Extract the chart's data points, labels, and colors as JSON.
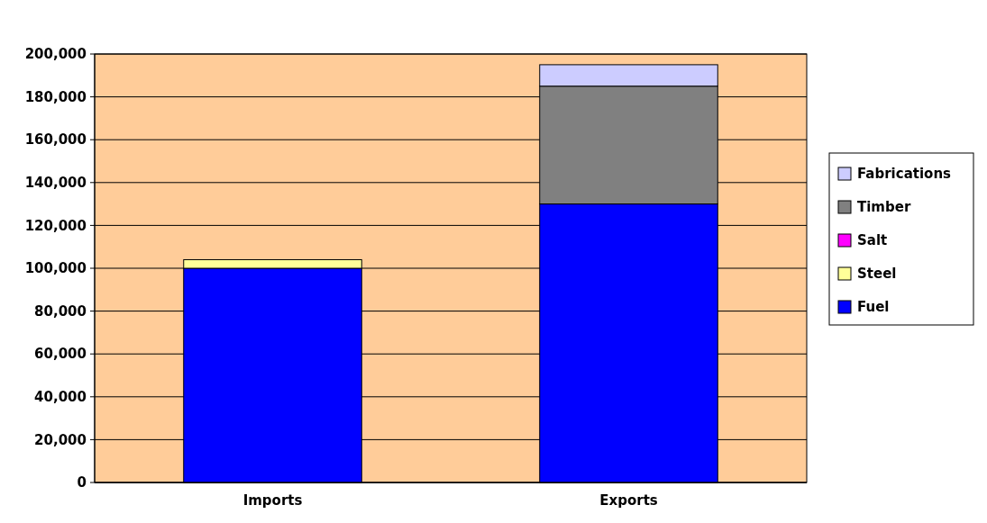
{
  "chart_data": {
    "type": "bar",
    "stacked": true,
    "categories": [
      "Imports",
      "Exports"
    ],
    "series": [
      {
        "name": "Fuel",
        "color": "#0000ff",
        "values": [
          100000,
          130000
        ]
      },
      {
        "name": "Steel",
        "color": "#ffff99",
        "values": [
          4000,
          0
        ]
      },
      {
        "name": "Salt",
        "color": "#ff00ff",
        "values": [
          0,
          0
        ]
      },
      {
        "name": "Timber",
        "color": "#808080",
        "values": [
          0,
          55000
        ]
      },
      {
        "name": "Fabrications",
        "color": "#ccccff",
        "values": [
          0,
          10000
        ]
      }
    ],
    "ylim": [
      0,
      200000
    ],
    "yticks": [
      {
        "value": 0,
        "label": "0"
      },
      {
        "value": 20000,
        "label": "20,000"
      },
      {
        "value": 40000,
        "label": "40,000"
      },
      {
        "value": 60000,
        "label": "60,000"
      },
      {
        "value": 80000,
        "label": "80,000"
      },
      {
        "value": 100000,
        "label": "100,000"
      },
      {
        "value": 120000,
        "label": "120,000"
      },
      {
        "value": 140000,
        "label": "140,000"
      },
      {
        "value": 160000,
        "label": "160,000"
      },
      {
        "value": 180000,
        "label": "180,000"
      },
      {
        "value": 200000,
        "label": "200,000"
      }
    ],
    "grid": "y",
    "legend": "right"
  }
}
